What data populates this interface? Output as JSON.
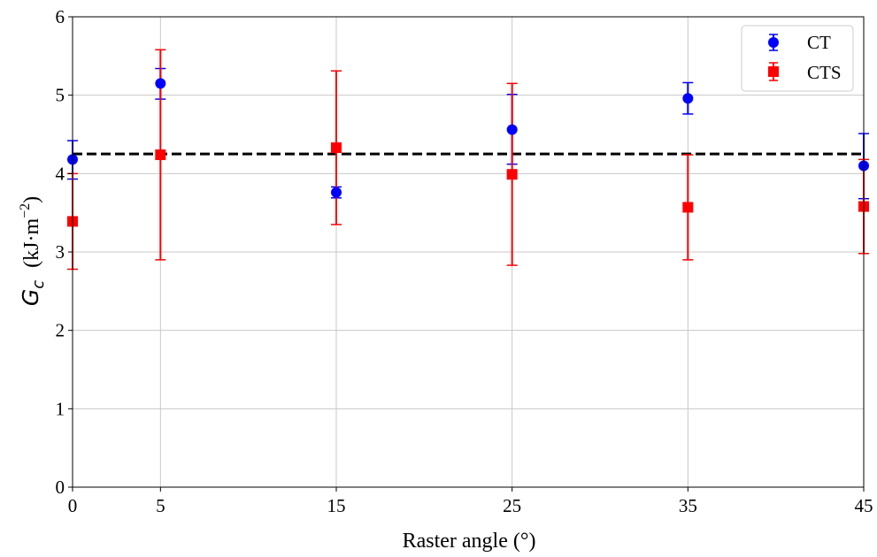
{
  "chart_data": {
    "type": "scatter",
    "title": "",
    "xlabel": "Raster angle (°)",
    "ylabel_symbol": "G",
    "ylabel_subscript": "c",
    "ylabel_unit": "(kJ·m",
    "ylabel_unit_exp": "−2",
    "ylabel_unit_close": ")",
    "xlim": [
      0,
      45
    ],
    "ylim": [
      0,
      6
    ],
    "xticks": [
      0,
      5,
      15,
      25,
      35,
      45
    ],
    "yticks": [
      0,
      1,
      2,
      3,
      4,
      5,
      6
    ],
    "grid": true,
    "legend_position": "top-right",
    "reference_line": {
      "y": 4.25,
      "style": "dashed",
      "color": "#000000"
    },
    "series": [
      {
        "name": "CT",
        "marker": "circle",
        "color": "#0000ff",
        "x": [
          0,
          5,
          15,
          25,
          35,
          45
        ],
        "y": [
          4.18,
          5.15,
          3.76,
          4.56,
          4.96,
          4.1
        ],
        "err_low": [
          0.25,
          0.2,
          0.07,
          0.44,
          0.2,
          0.42
        ],
        "err_high": [
          0.24,
          0.19,
          0.07,
          0.45,
          0.2,
          0.41
        ]
      },
      {
        "name": "CTS",
        "marker": "square",
        "color": "#ff0000",
        "x": [
          0,
          5,
          15,
          25,
          35,
          45
        ],
        "y": [
          3.39,
          4.24,
          4.33,
          3.99,
          3.57,
          3.58
        ],
        "err_low": [
          0.61,
          1.34,
          0.98,
          1.16,
          0.67,
          0.6
        ],
        "err_high": [
          0.61,
          1.34,
          0.98,
          1.16,
          0.67,
          0.6
        ]
      }
    ]
  }
}
